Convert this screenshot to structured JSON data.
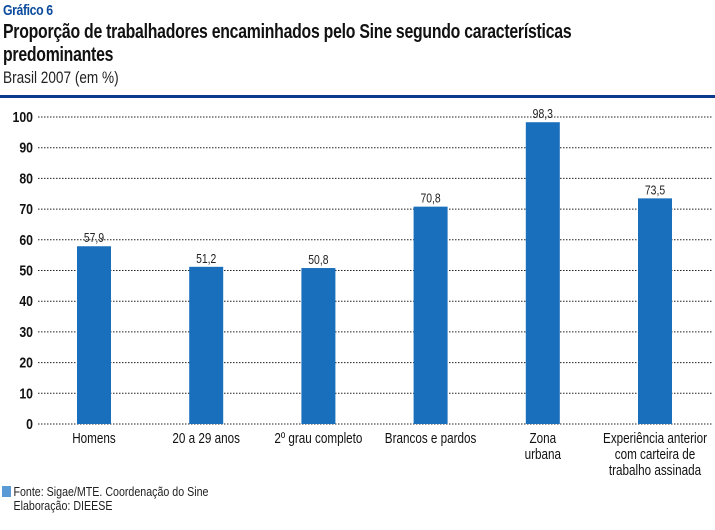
{
  "header": {
    "label": "Gráfico 6",
    "title_line1": "Proporção de trabalhadores encaminhados pelo Sine segundo características",
    "title_line2": "predominantes",
    "subtitle": "Brasil 2007 (em %)"
  },
  "colors": {
    "bar": "#1a6fbd",
    "separator": "#0b3a8c",
    "legend_square": "#5b9bd5"
  },
  "chart_data": {
    "type": "bar",
    "title": "Proporção de trabalhadores encaminhados pelo Sine segundo características predominantes",
    "subtitle": "Brasil 2007 (em %)",
    "xlabel": "",
    "ylabel": "",
    "ylim": [
      0,
      100
    ],
    "yticks": [
      0,
      10,
      20,
      30,
      40,
      50,
      60,
      70,
      80,
      90,
      100
    ],
    "grid": true,
    "categories": [
      [
        "Homens"
      ],
      [
        "20 a 29 anos"
      ],
      [
        "2º grau completo"
      ],
      [
        "Brancos e pardos"
      ],
      [
        "Zona",
        "urbana"
      ],
      [
        "Experiência anterior",
        "com carteira de",
        "trabalho assinada"
      ]
    ],
    "values": [
      57.9,
      51.2,
      50.8,
      70.8,
      98.3,
      73.5
    ],
    "data_labels": [
      "57,9",
      "51,2",
      "50,8",
      "70,8",
      "98,3",
      "73,5"
    ]
  },
  "footer": {
    "source": "Fonte: Sigae/MTE. Coordenação do Sine",
    "elaboration": "Elaboração: DIEESE"
  }
}
